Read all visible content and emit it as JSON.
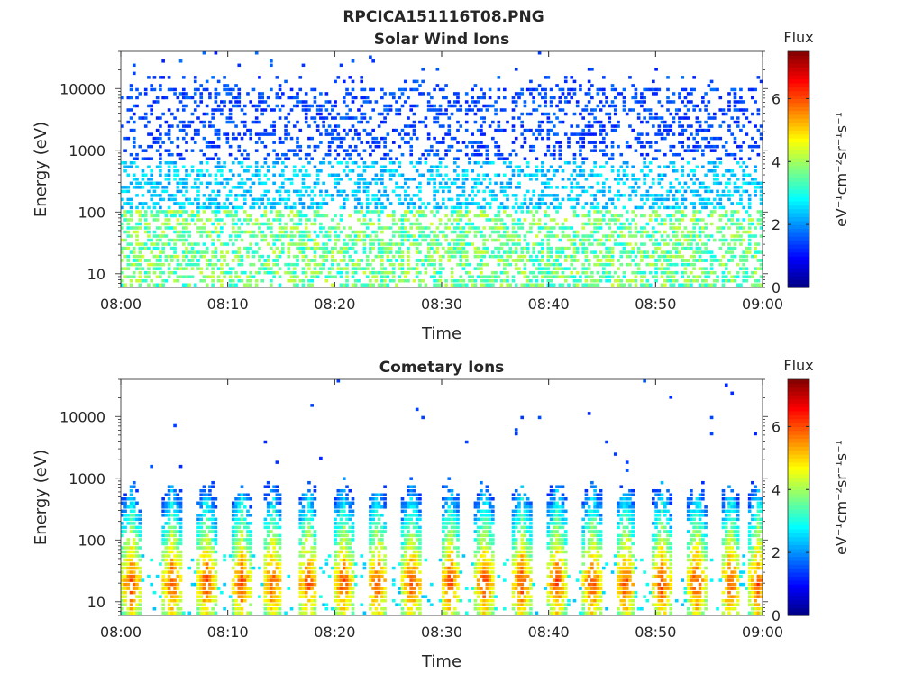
{
  "figure": {
    "title": "RPCICA151116T08.PNG"
  },
  "chart_data": [
    {
      "type": "heatmap",
      "title": "Solar Wind Ions",
      "xlabel": "Time",
      "ylabel": "Energy (eV)",
      "x_ticks": [
        "08:00",
        "08:10",
        "08:20",
        "08:30",
        "08:40",
        "08:50",
        "09:00"
      ],
      "xlim": [
        "08:00",
        "09:00"
      ],
      "y_scale": "log",
      "y_ticks": [
        10,
        100,
        1000,
        10000
      ],
      "y_tick_labels": [
        "10",
        "100",
        "1000",
        "10000"
      ],
      "ylim": [
        6,
        40000
      ],
      "colorbar": {
        "label": "Flux",
        "unit": "eV⁻¹cm⁻²sr⁻¹s⁻¹",
        "range": [
          0,
          7.5
        ],
        "ticks": [
          "0",
          "2",
          "4",
          "6"
        ],
        "colormap": "jet"
      },
      "pattern": "sparse speckle across all energies; density increases toward low energies; flux mostly 1-3 at high energy, 3-4.5 below 30 eV"
    },
    {
      "type": "heatmap",
      "title": "Cometary Ions",
      "xlabel": "Time",
      "ylabel": "Energy (eV)",
      "x_ticks": [
        "08:00",
        "08:10",
        "08:20",
        "08:30",
        "08:40",
        "08:50",
        "09:00"
      ],
      "xlim": [
        "08:00",
        "09:00"
      ],
      "y_scale": "log",
      "y_ticks": [
        10,
        100,
        1000,
        10000
      ],
      "y_tick_labels": [
        "10",
        "100",
        "1000",
        "10000"
      ],
      "ylim": [
        6,
        40000
      ],
      "colorbar": {
        "label": "Flux",
        "unit": "eV⁻¹cm⁻²sr⁻¹s⁻¹",
        "range": [
          0,
          7.5
        ],
        "ticks": [
          "0",
          "2",
          "4",
          "6"
        ],
        "colormap": "jet"
      },
      "burst_minutes": [
        1,
        4.8,
        8,
        11.3,
        14.2,
        17.5,
        20.8,
        24,
        27.2,
        30.8,
        34,
        37.5,
        40.8,
        44.1,
        47.2,
        50.6,
        53.8,
        57,
        59.6
      ],
      "burst_peak_flux": 6.2,
      "burst_peak_energy_ev": 20,
      "pattern": "periodic vertical bursts (~3.3 min) reaching ~400-1000 eV with peak flux 5-6.5 near 15-30 eV; rare isolated high-energy points"
    }
  ]
}
